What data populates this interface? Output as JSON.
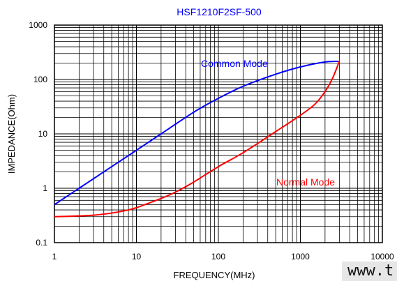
{
  "chart_data": {
    "type": "line",
    "title": "HSF1210F2SF-500",
    "xlabel": "FREQUENCY(MHz)",
    "ylabel": "IMPEDANCE(Ohm)",
    "xscale": "log",
    "yscale": "log",
    "xlim": [
      1,
      10000
    ],
    "ylim": [
      0.1,
      1000
    ],
    "x_ticks": [
      "1",
      "10",
      "100",
      "1000",
      "10000"
    ],
    "y_ticks": [
      "0.1",
      "1",
      "10",
      "100",
      "1000"
    ],
    "grid": true,
    "series": [
      {
        "name": "Common Mode",
        "color": "#0000ff",
        "x": [
          1,
          2,
          5,
          10,
          20,
          50,
          100,
          200,
          500,
          1000,
          2000,
          3000
        ],
        "y": [
          0.5,
          1.0,
          2.5,
          5.0,
          10,
          25,
          45,
          75,
          125,
          170,
          210,
          215
        ]
      },
      {
        "name": "Normal Mode",
        "color": "#ff0000",
        "x": [
          1,
          2,
          3,
          5,
          8,
          10,
          15,
          20,
          30,
          50,
          100,
          200,
          500,
          1000,
          1500,
          2000,
          2500,
          3000
        ],
        "y": [
          0.3,
          0.31,
          0.32,
          0.35,
          0.4,
          0.44,
          0.55,
          0.65,
          0.85,
          1.3,
          2.5,
          4.5,
          11,
          22,
          35,
          60,
          110,
          220
        ]
      }
    ]
  },
  "watermark": "www.t"
}
